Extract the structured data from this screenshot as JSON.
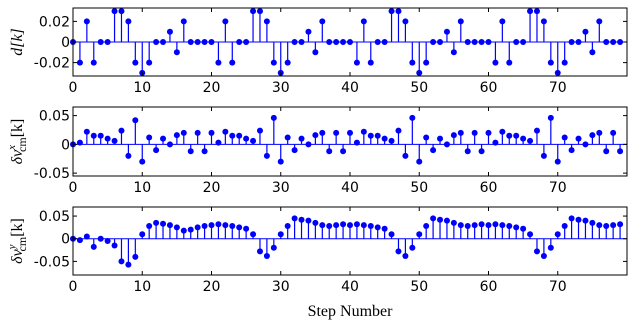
{
  "chart_data": [
    {
      "type": "stem",
      "ylabel": [
        "d[k]"
      ],
      "color": "#0000ff",
      "x": [
        0,
        1,
        2,
        3,
        4,
        5,
        6,
        7,
        8,
        9,
        10,
        11,
        12,
        13,
        14,
        15,
        16,
        17,
        18,
        19,
        20,
        21,
        22,
        23,
        24,
        25,
        26,
        27,
        28,
        29,
        30,
        31,
        32,
        33,
        34,
        35,
        36,
        37,
        38,
        39,
        40,
        41,
        42,
        43,
        44,
        45,
        46,
        47,
        48,
        49,
        50,
        51,
        52,
        53,
        54,
        55,
        56,
        57,
        58,
        59,
        60,
        61,
        62,
        63,
        64,
        65,
        66,
        67,
        68,
        69,
        70,
        71,
        72,
        73,
        74,
        75,
        76,
        77,
        78,
        79
      ],
      "values": [
        0,
        -0.02,
        0.02,
        -0.02,
        0,
        0,
        0.03,
        0.03,
        0.02,
        -0.02,
        -0.03,
        -0.02,
        0,
        0,
        0.01,
        -0.01,
        0.02,
        0,
        0,
        0,
        0,
        -0.02,
        0.02,
        -0.02,
        0,
        0,
        0.03,
        0.03,
        0.02,
        -0.02,
        -0.03,
        -0.02,
        0,
        0,
        0.01,
        -0.01,
        0.02,
        0,
        0,
        0,
        0,
        -0.02,
        0.02,
        -0.02,
        0,
        0,
        0.03,
        0.03,
        0.02,
        -0.02,
        -0.03,
        -0.02,
        0,
        0,
        0.01,
        -0.01,
        0.02,
        0,
        0,
        0,
        0,
        -0.02,
        0.02,
        -0.02,
        0,
        0,
        0.03,
        0.03,
        0.02,
        -0.02,
        -0.03,
        -0.02,
        0,
        0,
        0.01,
        -0.01,
        0.02,
        0,
        0,
        0
      ],
      "xlim": [
        0,
        80
      ],
      "xticks": [
        0,
        10,
        20,
        30,
        40,
        50,
        60,
        70
      ],
      "ylim": [
        -0.033,
        0.033
      ],
      "yticks": [
        -0.02,
        0,
        0.02
      ]
    },
    {
      "type": "stem",
      "ylabel": [
        "δv",
        "x",
        "cm",
        "[k]"
      ],
      "color": "#0000ff",
      "x": [
        0,
        1,
        2,
        3,
        4,
        5,
        6,
        7,
        8,
        9,
        10,
        11,
        12,
        13,
        14,
        15,
        16,
        17,
        18,
        19,
        20,
        21,
        22,
        23,
        24,
        25,
        26,
        27,
        28,
        29,
        30,
        31,
        32,
        33,
        34,
        35,
        36,
        37,
        38,
        39,
        40,
        41,
        42,
        43,
        44,
        45,
        46,
        47,
        48,
        49,
        50,
        51,
        52,
        53,
        54,
        55,
        56,
        57,
        58,
        59,
        60,
        61,
        62,
        63,
        64,
        65,
        66,
        67,
        68,
        69,
        70,
        71,
        72,
        73,
        74,
        75,
        76,
        77,
        78,
        79
      ],
      "values": [
        0,
        0.003,
        0.022,
        0.015,
        0.015,
        0.01,
        0.006,
        0.024,
        -0.02,
        0.042,
        -0.03,
        0.012,
        -0.01,
        0.01,
        0,
        0.016,
        0.02,
        -0.012,
        0.02,
        -0.012,
        0.02,
        0.003,
        0.022,
        0.015,
        0.015,
        0.01,
        0.006,
        0.024,
        -0.02,
        0.046,
        -0.03,
        0.012,
        -0.01,
        0.01,
        0,
        0.016,
        0.02,
        -0.012,
        0.02,
        -0.012,
        0.02,
        0.003,
        0.022,
        0.015,
        0.015,
        0.01,
        0.006,
        0.024,
        -0.02,
        0.046,
        -0.03,
        0.012,
        -0.01,
        0.01,
        0,
        0.016,
        0.02,
        -0.012,
        0.02,
        -0.012,
        0.02,
        0.003,
        0.022,
        0.015,
        0.015,
        0.01,
        0.006,
        0.024,
        -0.02,
        0.046,
        -0.03,
        0.012,
        -0.01,
        0.01,
        0,
        0.016,
        0.02,
        -0.012,
        0.02,
        -0.012
      ],
      "xlim": [
        0,
        80
      ],
      "xticks": [
        0,
        10,
        20,
        30,
        40,
        50,
        60,
        70
      ],
      "ylim": [
        -0.055,
        0.065
      ],
      "yticks": [
        -0.05,
        0,
        0.05
      ]
    },
    {
      "type": "stem",
      "ylabel": [
        "δv",
        "y",
        "cm",
        "[k]"
      ],
      "xlabel": "Step Number",
      "color": "#0000ff",
      "x": [
        0,
        1,
        2,
        3,
        4,
        5,
        6,
        7,
        8,
        9,
        10,
        11,
        12,
        13,
        14,
        15,
        16,
        17,
        18,
        19,
        20,
        21,
        22,
        23,
        24,
        25,
        26,
        27,
        28,
        29,
        30,
        31,
        32,
        33,
        34,
        35,
        36,
        37,
        38,
        39,
        40,
        41,
        42,
        43,
        44,
        45,
        46,
        47,
        48,
        49,
        50,
        51,
        52,
        53,
        54,
        55,
        56,
        57,
        58,
        59,
        60,
        61,
        62,
        63,
        64,
        65,
        66,
        67,
        68,
        69,
        70,
        71,
        72,
        73,
        74,
        75,
        76,
        77,
        78,
        79
      ],
      "values": [
        0,
        -0.003,
        0.005,
        -0.018,
        0,
        -0.005,
        -0.015,
        -0.05,
        -0.057,
        -0.04,
        0.01,
        0.028,
        0.035,
        0.033,
        0.03,
        0.025,
        0.018,
        0.02,
        0.025,
        0.028,
        0.03,
        0.032,
        0.03,
        0.028,
        0.025,
        0.022,
        0.01,
        -0.028,
        -0.038,
        -0.02,
        0.01,
        0.028,
        0.045,
        0.042,
        0.04,
        0.035,
        0.03,
        0.028,
        0.03,
        0.032,
        0.03,
        0.032,
        0.03,
        0.028,
        0.025,
        0.022,
        0.01,
        -0.028,
        -0.038,
        -0.02,
        0.01,
        0.028,
        0.045,
        0.042,
        0.04,
        0.035,
        0.03,
        0.028,
        0.03,
        0.032,
        0.03,
        0.032,
        0.03,
        0.028,
        0.025,
        0.022,
        0.01,
        -0.028,
        -0.038,
        -0.02,
        0.01,
        0.028,
        0.045,
        0.042,
        0.04,
        0.035,
        0.03,
        0.028,
        0.03,
        0.032
      ],
      "xlim": [
        0,
        80
      ],
      "xticks": [
        0,
        10,
        20,
        30,
        40,
        50,
        60,
        70
      ],
      "ylim": [
        -0.08,
        0.07
      ],
      "yticks": [
        -0.05,
        0,
        0.05
      ]
    }
  ]
}
